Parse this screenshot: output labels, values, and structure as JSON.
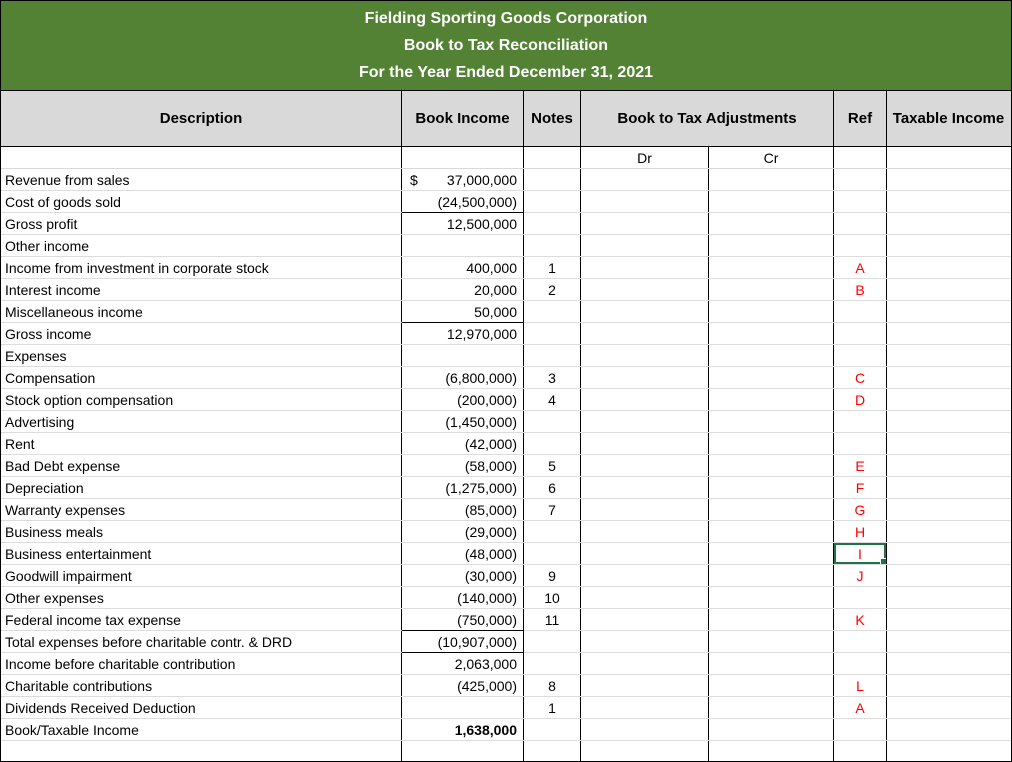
{
  "title": {
    "line1": "Fielding Sporting Goods Corporation",
    "line2": "Book to Tax Reconciliation",
    "line3": "For the Year Ended December 31, 2021"
  },
  "colors": {
    "banner_bg": "#548235",
    "banner_text": "#FFFFFF",
    "header_bg": "#D9D9D9",
    "ref_red": "#FF0000",
    "selection_green": "#217346"
  },
  "columns": {
    "description": "Description",
    "book_income": "Book Income",
    "notes": "Notes",
    "adjustments": "Book to Tax Adjustments",
    "dr": "Dr",
    "cr": "Cr",
    "ref": "Ref",
    "taxable_income": "Taxable Income"
  },
  "rows": [
    {
      "description": "Revenue from sales",
      "currency": "$",
      "book_income": "37,000,000"
    },
    {
      "description": "Cost of goods sold",
      "book_income": "(24,500,000)",
      "underline": true
    },
    {
      "description": "Gross profit",
      "book_income": "12,500,000"
    },
    {
      "description": "Other income"
    },
    {
      "description": "Income from investment in corporate stock",
      "book_income": "400,000",
      "note": "1",
      "ref": "A"
    },
    {
      "description": "Interest income",
      "book_income": "20,000",
      "note": "2",
      "ref": "B"
    },
    {
      "description": "Miscellaneous income",
      "book_income": "50,000",
      "underline": true
    },
    {
      "description": "Gross income",
      "book_income": "12,970,000"
    },
    {
      "description": "Expenses"
    },
    {
      "description": "Compensation",
      "book_income": "(6,800,000)",
      "note": "3",
      "ref": "C"
    },
    {
      "description": "Stock option compensation",
      "book_income": "(200,000)",
      "note": "4",
      "ref": "D"
    },
    {
      "description": "Advertising",
      "book_income": "(1,450,000)"
    },
    {
      "description": "Rent",
      "book_income": "(42,000)"
    },
    {
      "description": "Bad Debt expense",
      "book_income": "(58,000)",
      "note": "5",
      "ref": "E"
    },
    {
      "description": "Depreciation",
      "book_income": "(1,275,000)",
      "note": "6",
      "ref": "F"
    },
    {
      "description": "Warranty expenses",
      "book_income": "(85,000)",
      "note": "7",
      "ref": "G"
    },
    {
      "description": "Business meals",
      "book_income": "(29,000)",
      "ref": "H"
    },
    {
      "description": "Business entertainment",
      "book_income": "(48,000)",
      "ref": "I",
      "selected": true
    },
    {
      "description": "Goodwill impairment",
      "book_income": "(30,000)",
      "note": "9",
      "ref": "J"
    },
    {
      "description": "Other expenses",
      "book_income": "(140,000)",
      "note": "10"
    },
    {
      "description": "Federal income tax expense",
      "book_income": "(750,000)",
      "note": "11",
      "ref": "K",
      "underline": true
    },
    {
      "description": "Total expenses before charitable contr. & DRD",
      "book_income": "(10,907,000)",
      "underline": true
    },
    {
      "description": "Income before charitable contribution",
      "book_income": "2,063,000"
    },
    {
      "description": "Charitable contributions",
      "book_income": "(425,000)",
      "note": "8",
      "ref": "L"
    },
    {
      "description": "Dividends Received Deduction",
      "note": "1",
      "ref": "A"
    },
    {
      "description": "Book/Taxable Income",
      "book_income": "1,638,000",
      "bold": true
    },
    {
      "description": ""
    }
  ]
}
